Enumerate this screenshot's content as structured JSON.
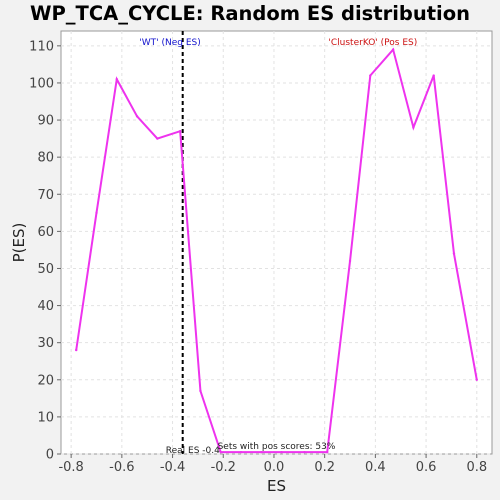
{
  "chart_data": {
    "type": "line",
    "title": "WP_TCA_CYCLE: Random ES distribution",
    "xlabel": "ES",
    "ylabel": "P(ES)",
    "xlim": [
      -0.84,
      0.86
    ],
    "ylim": [
      0,
      114
    ],
    "x_ticks": [
      -0.8,
      -0.6,
      -0.4,
      -0.2,
      0.0,
      0.2,
      0.4,
      0.6,
      0.8
    ],
    "x_tick_labels": [
      "-0.8",
      "-0.6",
      "-0.4",
      "-0.2",
      "0.0",
      "0.2",
      "0.4",
      "0.6",
      "0.8"
    ],
    "y_ticks": [
      0,
      10,
      20,
      30,
      40,
      50,
      60,
      70,
      80,
      90,
      100,
      110
    ],
    "y_tick_labels": [
      "0",
      "10",
      "20",
      "30",
      "40",
      "50",
      "60",
      "70",
      "80",
      "90",
      "100",
      "110"
    ],
    "grid": true,
    "series": [
      {
        "color": "#ee33ee",
        "x": [
          -0.78,
          -0.7,
          -0.62,
          -0.54,
          -0.46,
          -0.37,
          -0.29,
          -0.21,
          -0.13,
          -0.05,
          0.03,
          0.12,
          0.21,
          0.3,
          0.38,
          0.47,
          0.55,
          0.63,
          0.71,
          0.8
        ],
        "y": [
          28,
          65,
          101,
          91,
          85,
          87,
          17,
          0.5,
          0.5,
          0.5,
          0.5,
          0.5,
          0.5,
          52,
          102,
          109,
          88,
          102,
          54,
          20
        ]
      }
    ],
    "real_es": -0.36,
    "annotations": {
      "neg_label": "'WT' (Neg ES)",
      "pos_label": "'ClusterKO' (Pos ES)",
      "real_es_label": "Real ES -0.4",
      "pos_scores_label": "Sets with pos scores: 53%"
    },
    "colors": {
      "series": "#ee33ee",
      "neg_label": "#1111cc",
      "pos_label": "#cc1111",
      "real_es_line": "#000000"
    }
  }
}
